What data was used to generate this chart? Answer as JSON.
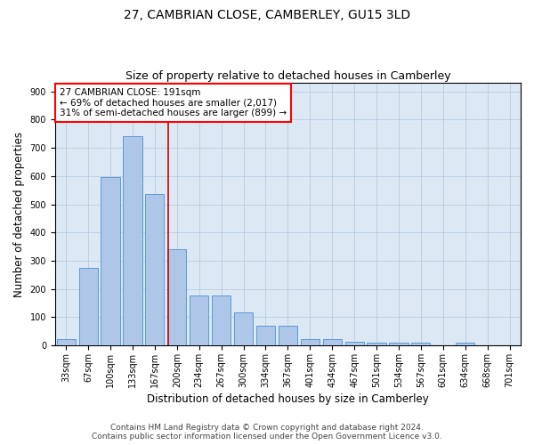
{
  "title": "27, CAMBRIAN CLOSE, CAMBERLEY, GU15 3LD",
  "subtitle": "Size of property relative to detached houses in Camberley",
  "xlabel": "Distribution of detached houses by size in Camberley",
  "ylabel": "Number of detached properties",
  "categories": [
    "33sqm",
    "67sqm",
    "100sqm",
    "133sqm",
    "167sqm",
    "200sqm",
    "234sqm",
    "267sqm",
    "300sqm",
    "334sqm",
    "367sqm",
    "401sqm",
    "434sqm",
    "467sqm",
    "501sqm",
    "534sqm",
    "567sqm",
    "601sqm",
    "634sqm",
    "668sqm",
    "701sqm"
  ],
  "values": [
    22,
    275,
    595,
    740,
    535,
    340,
    178,
    178,
    118,
    68,
    68,
    22,
    22,
    12,
    10,
    10,
    10,
    0,
    10,
    0,
    0
  ],
  "bar_color": "#aec6e8",
  "bar_edge_color": "#5b9bd5",
  "annotation_line1": "27 CAMBRIAN CLOSE: 191sqm",
  "annotation_line2": "← 69% of detached houses are smaller (2,017)",
  "annotation_line3": "31% of semi-detached houses are larger (899) →",
  "ref_line_x": 4.6,
  "ref_line_color": "#cc0000",
  "ylim": [
    0,
    930
  ],
  "yticks": [
    0,
    100,
    200,
    300,
    400,
    500,
    600,
    700,
    800,
    900
  ],
  "background_color": "#ffffff",
  "plot_bg_color": "#dce9f5",
  "grid_color": "#b0c4d8",
  "footer_line1": "Contains HM Land Registry data © Crown copyright and database right 2024.",
  "footer_line2": "Contains public sector information licensed under the Open Government Licence v3.0.",
  "title_fontsize": 10,
  "subtitle_fontsize": 9,
  "xlabel_fontsize": 8.5,
  "ylabel_fontsize": 8.5,
  "tick_fontsize": 7,
  "footer_fontsize": 6.5,
  "annot_fontsize": 7.5
}
